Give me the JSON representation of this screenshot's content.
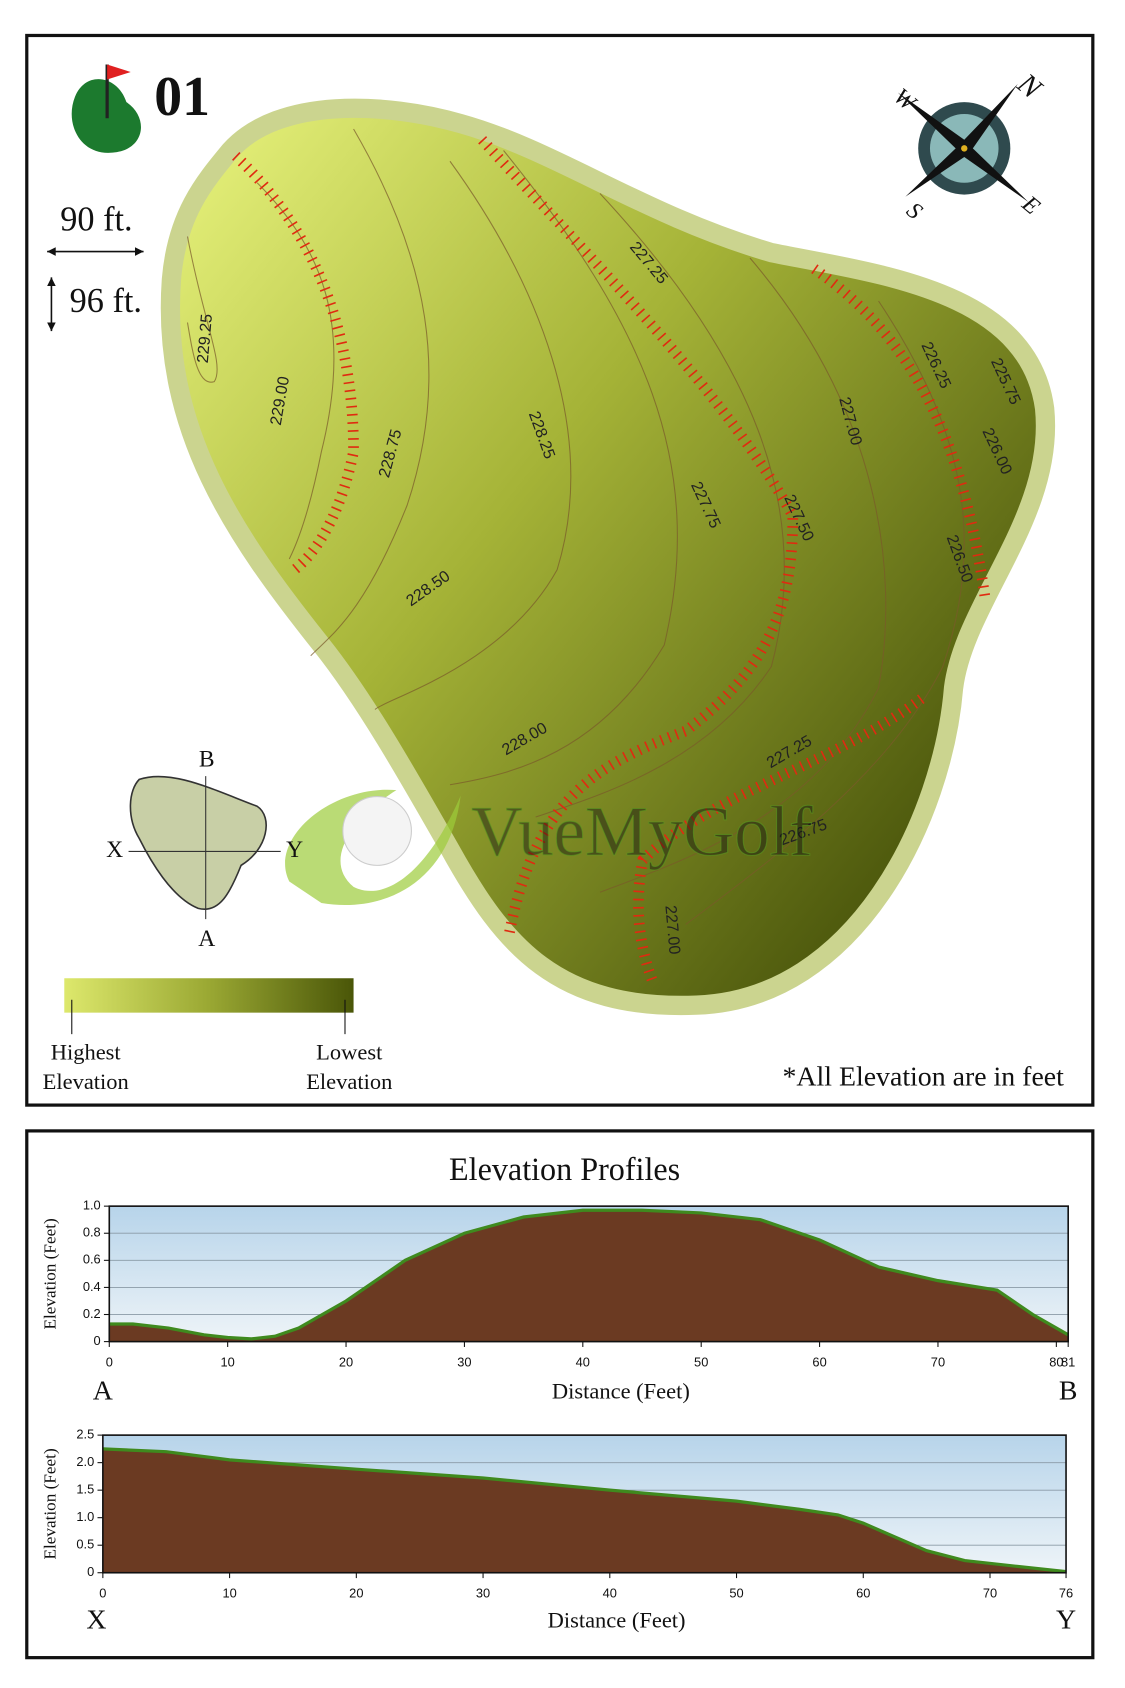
{
  "map": {
    "hole": "01",
    "scale_x": "90 ft.",
    "scale_y": "96 ft.",
    "compass": {
      "n": "N",
      "e": "E",
      "s": "S",
      "w": "W"
    },
    "contours": [
      "229.25",
      "229.00",
      "228.75",
      "228.50",
      "228.25",
      "228.00",
      "227.75",
      "227.50",
      "227.25",
      "227.25",
      "227.00",
      "227.00",
      "226.75",
      "226.50",
      "226.25",
      "226.00",
      "225.75"
    ],
    "section": {
      "b": "B",
      "a": "A",
      "x": "X",
      "y": "Y"
    },
    "legend": {
      "high": [
        "Highest",
        "Elevation"
      ],
      "low": [
        "Lowest",
        "Elevation"
      ]
    },
    "note": "*All Elevation are in feet",
    "watermark": "VueMyGolf"
  },
  "profiles_title": "Elevation Profiles",
  "chart_data": [
    {
      "type": "area",
      "xlabel": "Distance (Feet)",
      "ylabel": "Elevation (Feet)",
      "start_label": "A",
      "end_label": "B",
      "color": "#6b3a22",
      "x": [
        0,
        2,
        5,
        8,
        10,
        12,
        14,
        16,
        18,
        20,
        22,
        25,
        30,
        35,
        40,
        45,
        50,
        55,
        60,
        65,
        70,
        75,
        78,
        81
      ],
      "values": [
        0.13,
        0.13,
        0.1,
        0.05,
        0.03,
        0.02,
        0.04,
        0.1,
        0.2,
        0.3,
        0.42,
        0.6,
        0.8,
        0.92,
        0.97,
        0.97,
        0.95,
        0.9,
        0.75,
        0.55,
        0.45,
        0.38,
        0.2,
        0.05
      ],
      "xlim": [
        0,
        81
      ],
      "xticks": [
        0,
        10,
        20,
        30,
        40,
        50,
        60,
        70,
        80,
        81
      ],
      "ylim": [
        0,
        1
      ],
      "yticks": [
        0,
        0.2,
        0.4,
        0.6,
        0.8,
        {
          "value": 1,
          "label": "1.0"
        }
      ],
      "grid": true
    },
    {
      "type": "area",
      "xlabel": "Distance (Feet)",
      "ylabel": "Elevation (Feet)",
      "start_label": "X",
      "end_label": "Y",
      "color": "#6b3a22",
      "x": [
        0,
        5,
        10,
        20,
        30,
        40,
        50,
        55,
        58,
        60,
        62,
        65,
        68,
        72,
        76
      ],
      "values": [
        2.25,
        2.2,
        2.05,
        1.88,
        1.72,
        1.5,
        1.3,
        1.15,
        1.05,
        0.9,
        0.7,
        0.4,
        0.22,
        0.12,
        0.02
      ],
      "xlim": [
        0,
        76
      ],
      "xticks": [
        0,
        10,
        20,
        30,
        40,
        50,
        60,
        70,
        76
      ],
      "ylim": [
        0,
        2.5
      ],
      "yticks": [
        0,
        0.5,
        {
          "value": 1,
          "label": "1.0"
        },
        1.5,
        {
          "value": 2,
          "label": "2.0"
        },
        2.5
      ],
      "grid": true
    }
  ]
}
